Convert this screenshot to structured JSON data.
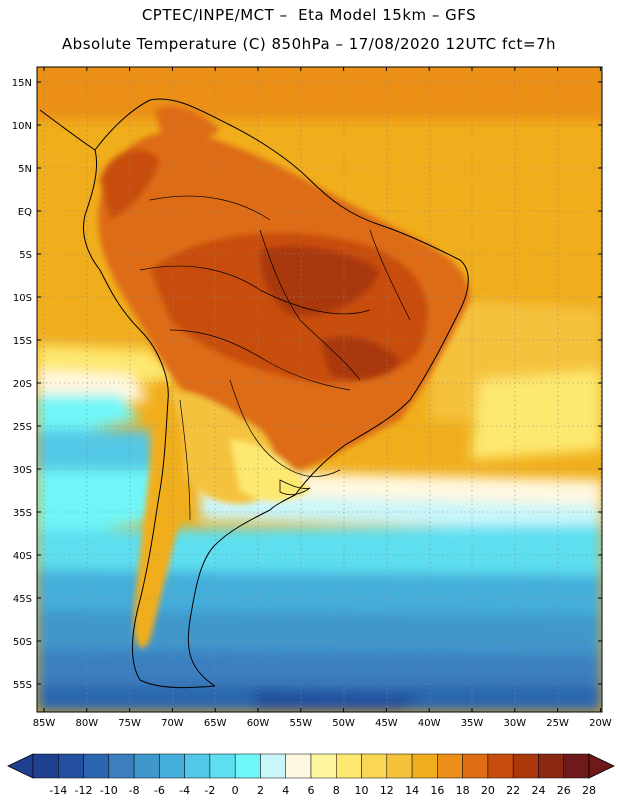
{
  "header": {
    "line1": "CPTEC/INPE/MCT –  Eta Model 15km – GFS",
    "line2": "Absolute Temperature (C) 850hPa – 17/08/2020 12UTC fct=7h"
  },
  "axes": {
    "lat_labels": [
      "15N",
      "10N",
      "5N",
      "EQ",
      "5S",
      "10S",
      "15S",
      "20S",
      "25S",
      "30S",
      "35S",
      "40S",
      "45S",
      "50S",
      "55S"
    ],
    "lon_labels": [
      "85W",
      "80W",
      "75W",
      "70W",
      "65W",
      "60W",
      "55W",
      "50W",
      "45W",
      "40W",
      "35W",
      "30W",
      "25W",
      "20W"
    ]
  },
  "colorbar": {
    "labels": [
      "-14",
      "-12",
      "-10",
      "-8",
      "-6",
      "-4",
      "-2",
      "0",
      "2",
      "4",
      "6",
      "8",
      "10",
      "12",
      "14",
      "16",
      "18",
      "20",
      "22",
      "24",
      "26",
      "28"
    ],
    "colors": [
      "#1f3f8f",
      "#23509f",
      "#2c66ae",
      "#3b7fbf",
      "#3f97cc",
      "#45aedb",
      "#53c8e6",
      "#5ddff0",
      "#6ff6f8",
      "#c9f6fb",
      "#fff8e0",
      "#fef7a0",
      "#fde870",
      "#f9d653",
      "#f5c23c",
      "#f1ae1c",
      "#eb8f18",
      "#de6c12",
      "#c84d0c",
      "#aa380c",
      "#8a2812",
      "#6e1a1a"
    ]
  },
  "colors": {
    "ocean_hot": "#f1ae1c",
    "land_hot": "#c84d0c",
    "cold_sea": "#3f97cc",
    "coast": "#000000"
  }
}
